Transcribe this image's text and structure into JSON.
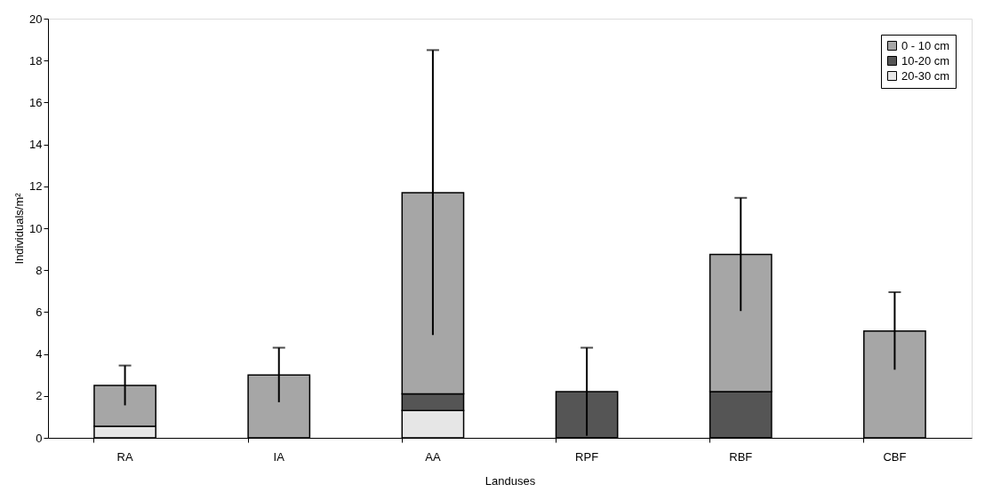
{
  "chart_data": {
    "type": "bar",
    "stacked": true,
    "xlabel": "Landuses",
    "ylabel": "Individuals/m²",
    "categories": [
      "RA",
      "IA",
      "AA",
      "RPF",
      "RBF",
      "CBF"
    ],
    "series": [
      {
        "name": "20-30 cm",
        "color": "#e6e6e6",
        "values": [
          0.55,
          null,
          1.3,
          null,
          null,
          null
        ]
      },
      {
        "name": "10-20 cm",
        "color": "#555555",
        "values": [
          null,
          null,
          0.8,
          2.2,
          2.2,
          null
        ],
        "errors": [
          null,
          null,
          null,
          2.1,
          null,
          null
        ]
      },
      {
        "name": "0 - 10 cm",
        "color": "#a6a6a6",
        "values": [
          1.95,
          3.0,
          9.6,
          null,
          6.55,
          5.1
        ],
        "errors": [
          0.95,
          1.3,
          6.8,
          null,
          2.7,
          1.85
        ]
      }
    ],
    "ylim": [
      0,
      20
    ],
    "yticks": [
      0,
      2,
      4,
      6,
      8,
      10,
      12,
      14,
      16,
      18,
      20
    ],
    "grid": false,
    "legend": "top right"
  }
}
